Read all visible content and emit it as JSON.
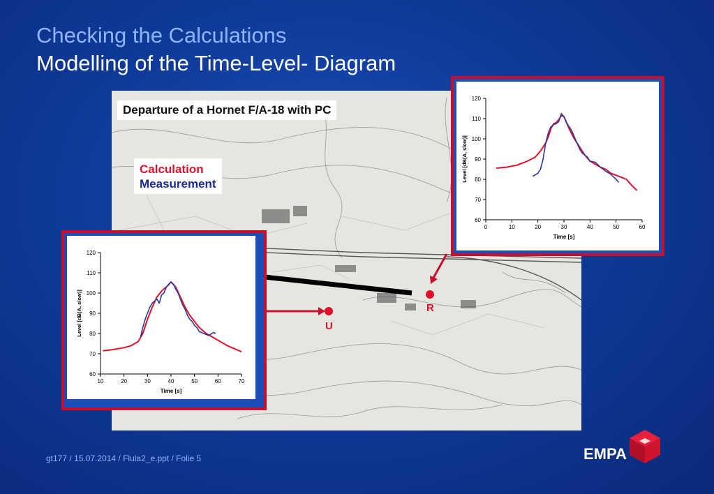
{
  "slide": {
    "title_line1": "Checking the Calculations",
    "title_line2": "Modelling of the Time-Level- Diagram",
    "footer": "gt177 / 15.07.2014 / Flula2_e.ppt / Folie 5",
    "logo": "EMPA"
  },
  "map": {
    "caption": "Departure of a Hornet F/A-18 with PC",
    "legend_calculation": "Calculation",
    "legend_measurement": "Measurement",
    "marker_u": "U",
    "marker_r": "R"
  },
  "colors": {
    "calculation": "#e0102a",
    "measurement": "#2a3aa0",
    "frame": "#c8102e"
  },
  "chart_data": [
    {
      "id": "U",
      "type": "line",
      "xlabel": "Time [s]",
      "ylabel": "Level [dB(A, slow)]",
      "xlim": [
        10,
        70
      ],
      "ylim": [
        60,
        120
      ],
      "xticks": [
        10,
        20,
        30,
        40,
        50,
        60,
        70
      ],
      "yticks": [
        60,
        70,
        80,
        90,
        100,
        110,
        120
      ],
      "series": [
        {
          "name": "Calculation",
          "x": [
            11,
            15,
            20,
            23,
            26,
            28,
            30,
            32,
            34,
            36,
            38,
            40,
            42,
            44,
            46,
            48,
            50,
            52,
            55,
            58,
            61,
            64,
            67,
            70
          ],
          "y": [
            71.5,
            72,
            73,
            74,
            76,
            80,
            87,
            93,
            98,
            101,
            103,
            105.5,
            103,
            98,
            93,
            89,
            86,
            83,
            80,
            78,
            76,
            74,
            72.5,
            71
          ]
        },
        {
          "name": "Measurement",
          "x": [
            27,
            28,
            29,
            30,
            31,
            32,
            33,
            34,
            35,
            36,
            37,
            38,
            39,
            40,
            41,
            42,
            43,
            44,
            45,
            46,
            47,
            48,
            49,
            50,
            51,
            52,
            54,
            56,
            58,
            59
          ],
          "y": [
            78,
            83,
            87,
            90,
            93,
            95,
            96,
            97,
            95,
            99,
            100,
            103,
            104,
            105.5,
            104.5,
            102,
            100,
            97,
            94,
            92,
            89,
            87,
            86,
            84,
            83,
            81,
            80,
            79,
            80.5,
            80
          ]
        }
      ]
    },
    {
      "id": "R",
      "type": "line",
      "xlabel": "Time [s]",
      "ylabel": "Level [dB(A, slow)]",
      "xlim": [
        0,
        60
      ],
      "ylim": [
        60,
        120
      ],
      "xticks": [
        0,
        10,
        20,
        30,
        40,
        50,
        60
      ],
      "yticks": [
        60,
        70,
        80,
        90,
        100,
        110,
        120
      ],
      "series": [
        {
          "name": "Calculation",
          "x": [
            4,
            8,
            12,
            16,
            19,
            21,
            23,
            24,
            25,
            26,
            27,
            28,
            29,
            30,
            31,
            32,
            34,
            36,
            38,
            40,
            42,
            44,
            46,
            48,
            50,
            52,
            54,
            56,
            58
          ],
          "y": [
            85.5,
            86,
            87,
            89,
            91,
            94,
            98,
            101,
            105,
            107.5,
            108,
            109.5,
            111.5,
            111,
            108,
            105,
            100,
            96,
            92,
            89,
            87.5,
            86,
            85,
            83,
            82,
            81,
            80,
            77,
            74.5
          ]
        },
        {
          "name": "Measurement",
          "x": [
            18,
            20,
            21,
            22,
            23,
            24,
            25,
            26,
            27,
            28,
            29,
            30,
            31,
            32,
            33,
            34,
            35,
            36,
            37,
            38,
            39,
            40,
            42,
            44,
            46,
            48,
            50,
            51
          ],
          "y": [
            81.5,
            83,
            85,
            90,
            98,
            103,
            106,
            107,
            107.5,
            108.5,
            112.5,
            111,
            108,
            106,
            104,
            101,
            98,
            95,
            93,
            92,
            91,
            89,
            88.5,
            86,
            84,
            82.5,
            80,
            78.5
          ]
        }
      ]
    }
  ]
}
